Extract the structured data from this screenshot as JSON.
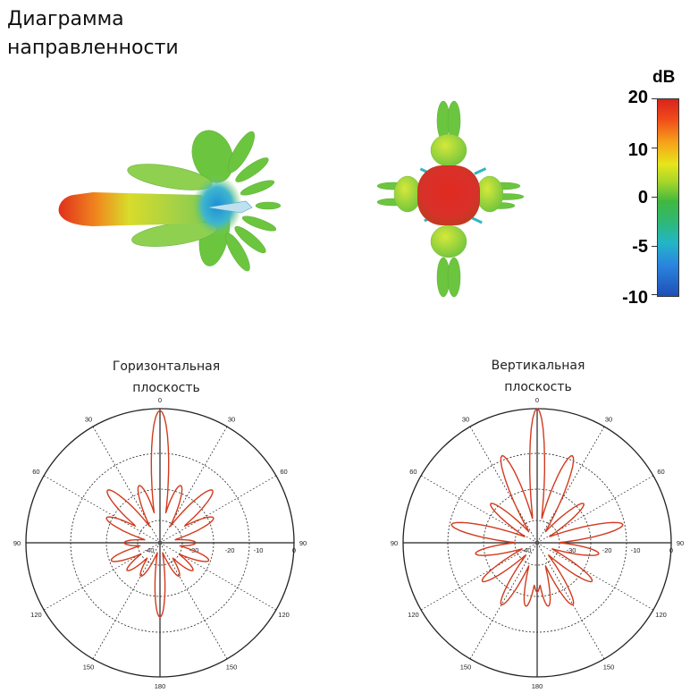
{
  "header": {
    "title_line1": "Диаграмма",
    "title_line2": "направленности"
  },
  "colorbar": {
    "unit": "dB",
    "ticks": [
      "20",
      "10",
      "0",
      "-5",
      "-10"
    ],
    "colors": [
      "#d9241b",
      "#f6a21a",
      "#e7e51b",
      "#40b840",
      "#22b6c8",
      "#1f4fb8"
    ]
  },
  "plots": {
    "horizontal": {
      "title_line1": "Горизонтальная",
      "title_line2": "плоскость"
    },
    "vertical": {
      "title_line1": "Вертикальная",
      "title_line2": "плоскость"
    }
  },
  "polar_axis": {
    "angle_labels": [
      "0",
      "30",
      "60",
      "90",
      "120",
      "150",
      "180",
      "150",
      "120",
      "90",
      "60",
      "30"
    ],
    "radial_labels": [
      "-40",
      "-30",
      "-20",
      "-10",
      "0"
    ],
    "line_color": "#d23a1e"
  }
}
